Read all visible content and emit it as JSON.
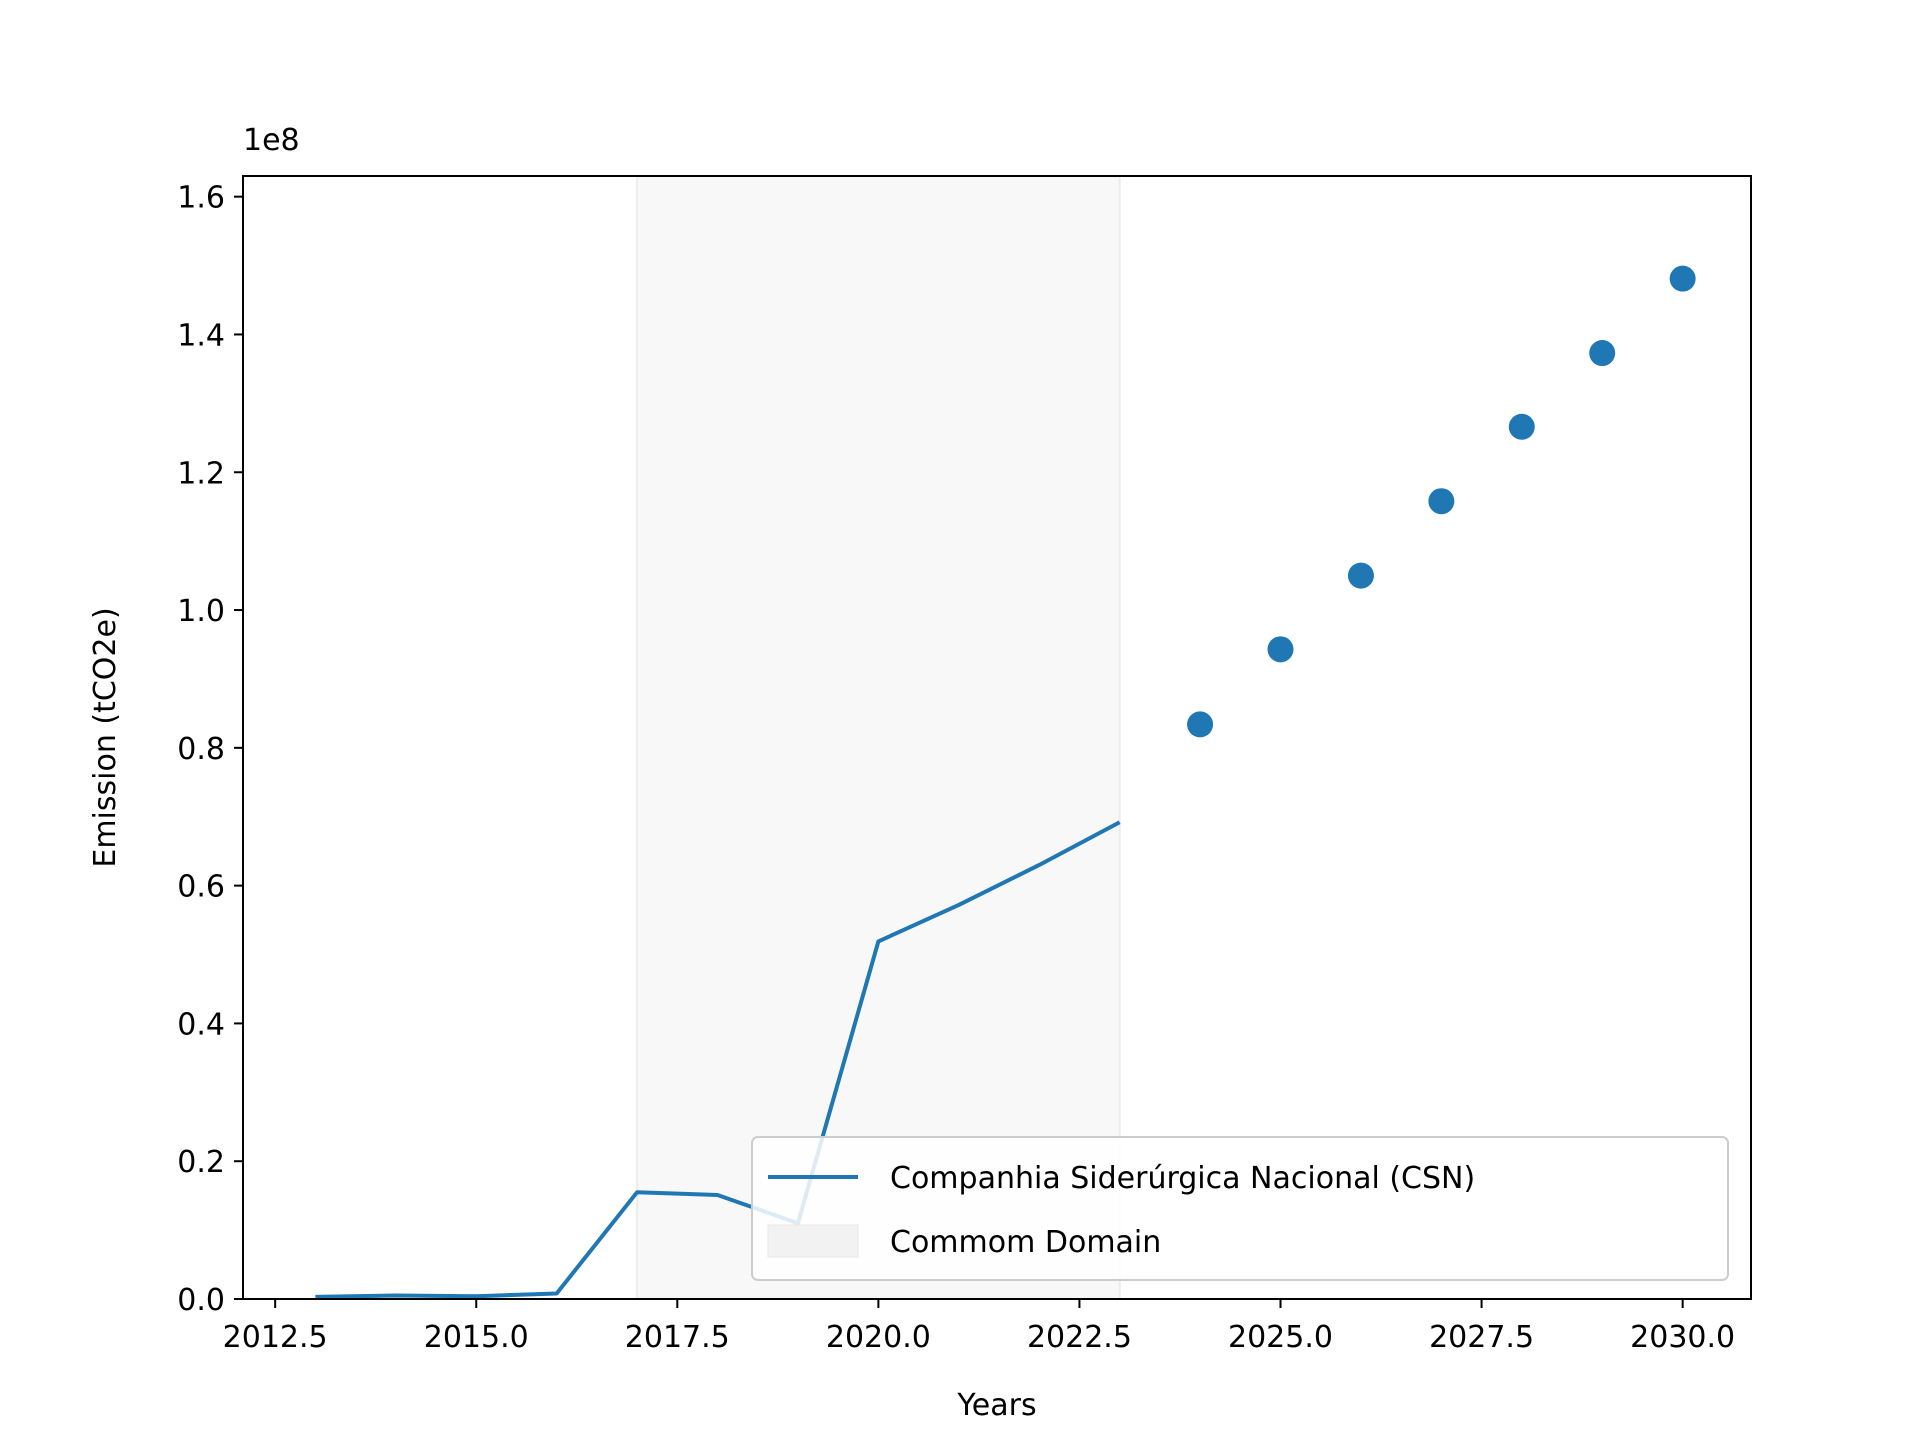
{
  "chart_data": {
    "type": "line",
    "xlabel": "Years",
    "ylabel": "Emission (tCO2e)",
    "y_offset_label": "1e8",
    "xlim": [
      2012.1,
      2030.85
    ],
    "ylim": [
      0,
      1.63
    ],
    "y_scale_note": "values in units of 1e8 tCO2e",
    "x_ticks": [
      2012.5,
      2015.0,
      2017.5,
      2020.0,
      2022.5,
      2025.0,
      2027.5,
      2030.0
    ],
    "x_tick_labels": [
      "2012.5",
      "2015.0",
      "2017.5",
      "2020.0",
      "2022.5",
      "2025.0",
      "2027.5",
      "2030.0"
    ],
    "y_ticks": [
      0.0,
      0.2,
      0.4,
      0.6,
      0.8,
      1.0,
      1.2,
      1.4,
      1.6
    ],
    "y_tick_labels": [
      "0.0",
      "0.2",
      "0.4",
      "0.6",
      "0.8",
      "1.0",
      "1.2",
      "1.4",
      "1.6"
    ],
    "grid": false,
    "legend_position": "lower-right",
    "shaded_region": {
      "name": "Commom Domain",
      "x_start": 2017,
      "x_end": 2023,
      "color": "#f2f2f2"
    },
    "series": [
      {
        "name": "Companhia Siderúrgica Nacional (CSN)",
        "kind": "line",
        "color": "#1f77b4",
        "x": [
          2013,
          2014,
          2015,
          2016,
          2017,
          2018,
          2019,
          2020,
          2021,
          2022,
          2023
        ],
        "y": [
          0.003,
          0.005,
          0.004,
          0.008,
          0.155,
          0.151,
          0.11,
          0.519,
          0.572,
          0.63,
          0.692
        ]
      },
      {
        "kind": "scatter",
        "color": "#1f77b4",
        "x": [
          2024,
          2025,
          2026,
          2027,
          2028,
          2029,
          2030
        ],
        "y": [
          0.834,
          0.943,
          1.05,
          1.158,
          1.266,
          1.373,
          1.481
        ]
      }
    ],
    "legend": [
      {
        "label": "Companhia Siderúrgica Nacional (CSN)",
        "symbol": "line",
        "color": "#1f77b4"
      },
      {
        "label": "Commom Domain",
        "symbol": "patch",
        "color": "#f2f2f2"
      }
    ]
  }
}
